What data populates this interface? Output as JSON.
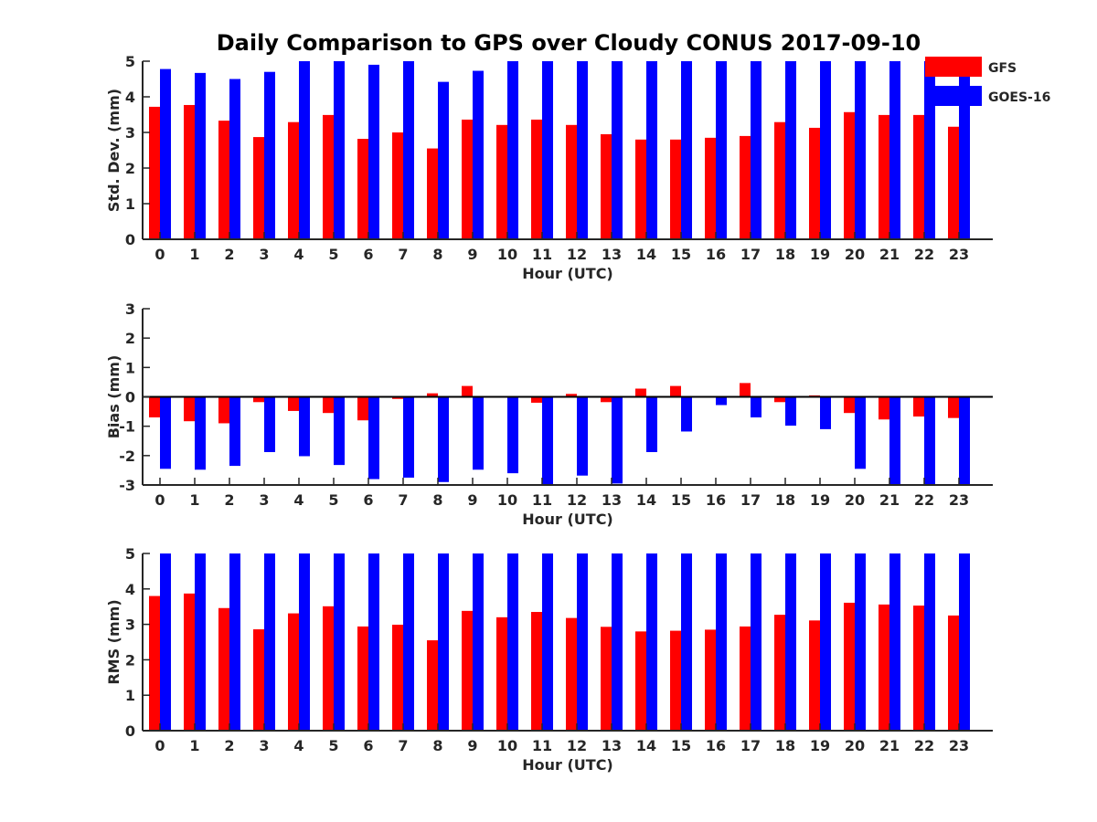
{
  "title": "Daily Comparison to GPS over Cloudy CONUS 2017-09-10",
  "legend": {
    "entries": [
      {
        "name": "GFS",
        "color": "#ff0000"
      },
      {
        "name": "GOES-16",
        "color": "#0000ff"
      }
    ],
    "placement": "top-right"
  },
  "chart_data": [
    {
      "type": "bar",
      "xlabel": "Hour (UTC)",
      "ylabel": "Std. Dev. (mm)",
      "ylim": [
        0,
        5
      ],
      "yticks": [
        0,
        1,
        2,
        3,
        4,
        5
      ],
      "categories": [
        "0",
        "1",
        "2",
        "3",
        "4",
        "5",
        "6",
        "7",
        "8",
        "9",
        "10",
        "11",
        "12",
        "13",
        "14",
        "15",
        "16",
        "17",
        "18",
        "19",
        "20",
        "21",
        "22",
        "23"
      ],
      "series": [
        {
          "name": "GFS",
          "color": "#ff0000",
          "values": [
            3.72,
            3.77,
            3.33,
            2.87,
            3.29,
            3.49,
            2.82,
            3.0,
            2.55,
            3.36,
            3.21,
            3.36,
            3.21,
            2.95,
            2.8,
            2.8,
            2.85,
            2.9,
            3.29,
            3.13,
            3.57,
            3.49,
            3.49,
            3.16
          ]
        },
        {
          "name": "GOES-16",
          "color": "#0000ff",
          "values": [
            4.78,
            4.67,
            4.5,
            4.7,
            5.0,
            5.0,
            4.9,
            5.0,
            4.42,
            4.73,
            5.0,
            5.0,
            5.0,
            5.0,
            5.0,
            5.0,
            5.0,
            5.0,
            5.0,
            5.0,
            5.0,
            5.0,
            5.0,
            5.0
          ]
        }
      ],
      "grid": false
    },
    {
      "type": "bar",
      "xlabel": "Hour (UTC)",
      "ylabel": "Bias (mm)",
      "ylim": [
        -3,
        3
      ],
      "yticks": [
        -3,
        -2,
        -1,
        0,
        1,
        2,
        3
      ],
      "categories": [
        "0",
        "1",
        "2",
        "3",
        "4",
        "5",
        "6",
        "7",
        "8",
        "9",
        "10",
        "11",
        "12",
        "13",
        "14",
        "15",
        "16",
        "17",
        "18",
        "19",
        "20",
        "21",
        "22",
        "23"
      ],
      "series": [
        {
          "name": "GFS",
          "color": "#ff0000",
          "values": [
            -0.7,
            -0.83,
            -0.9,
            -0.18,
            -0.48,
            -0.55,
            -0.8,
            -0.07,
            0.12,
            0.37,
            -0.03,
            -0.2,
            0.1,
            -0.18,
            0.28,
            0.37,
            0.0,
            0.47,
            -0.18,
            0.05,
            -0.55,
            -0.77,
            -0.67,
            -0.72
          ]
        },
        {
          "name": "GOES-16",
          "color": "#0000ff",
          "values": [
            -2.45,
            -2.48,
            -2.35,
            -1.88,
            -2.02,
            -2.32,
            -2.8,
            -2.75,
            -2.9,
            -2.48,
            -2.6,
            -3.0,
            -2.68,
            -2.95,
            -1.88,
            -1.18,
            -0.28,
            -0.7,
            -0.98,
            -1.1,
            -2.45,
            -3.0,
            -3.0,
            -2.98
          ]
        }
      ],
      "grid": false
    },
    {
      "type": "bar",
      "xlabel": "Hour (UTC)",
      "ylabel": "RMS (mm)",
      "ylim": [
        0,
        5
      ],
      "yticks": [
        0,
        1,
        2,
        3,
        4,
        5
      ],
      "categories": [
        "0",
        "1",
        "2",
        "3",
        "4",
        "5",
        "6",
        "7",
        "8",
        "9",
        "10",
        "11",
        "12",
        "13",
        "14",
        "15",
        "16",
        "17",
        "18",
        "19",
        "20",
        "21",
        "22",
        "23"
      ],
      "series": [
        {
          "name": "GFS",
          "color": "#ff0000",
          "values": [
            3.8,
            3.87,
            3.46,
            2.86,
            3.31,
            3.51,
            2.94,
            2.99,
            2.55,
            3.38,
            3.2,
            3.35,
            3.18,
            2.93,
            2.8,
            2.82,
            2.85,
            2.94,
            3.27,
            3.11,
            3.61,
            3.56,
            3.53,
            3.25
          ]
        },
        {
          "name": "GOES-16",
          "color": "#0000ff",
          "values": [
            5.0,
            5.0,
            5.0,
            5.0,
            5.0,
            5.0,
            5.0,
            5.0,
            5.0,
            5.0,
            5.0,
            5.0,
            5.0,
            5.0,
            5.0,
            5.0,
            5.0,
            5.0,
            5.0,
            5.0,
            5.0,
            5.0,
            5.0,
            5.0
          ]
        }
      ],
      "grid": false
    }
  ]
}
